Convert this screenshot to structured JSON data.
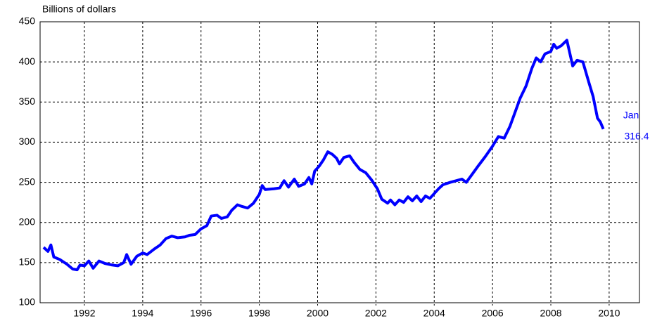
{
  "chart_data": {
    "type": "line",
    "y_label": "Billions of dollars",
    "annotations": [
      "Jan",
      "316.4"
    ],
    "x": [
      1990.6,
      1990.75,
      1990.85,
      1990.95,
      1991.15,
      1991.4,
      1991.6,
      1991.75,
      1991.85,
      1992.0,
      1992.15,
      1992.3,
      1992.5,
      1992.7,
      1992.95,
      1993.15,
      1993.35,
      1993.45,
      1993.6,
      1993.8,
      1994.0,
      1994.15,
      1994.4,
      1994.6,
      1994.8,
      1995.0,
      1995.2,
      1995.45,
      1995.6,
      1995.8,
      1996.0,
      1996.2,
      1996.35,
      1996.55,
      1996.7,
      1996.9,
      1997.05,
      1997.25,
      1997.4,
      1997.6,
      1997.8,
      1998.0,
      1998.1,
      1998.2,
      1998.5,
      1998.7,
      1998.85,
      1999.0,
      1999.2,
      1999.35,
      1999.55,
      1999.7,
      1999.8,
      1999.9,
      2000.05,
      2000.2,
      2000.35,
      2000.5,
      2000.65,
      2000.75,
      2000.9,
      2001.1,
      2001.25,
      2001.45,
      2001.65,
      2001.85,
      2002.05,
      2002.2,
      2002.4,
      2002.5,
      2002.65,
      2002.8,
      2002.95,
      2003.1,
      2003.25,
      2003.4,
      2003.55,
      2003.7,
      2003.85,
      2004.0,
      2004.15,
      2004.3,
      2004.55,
      2004.75,
      2004.95,
      2005.1,
      2005.3,
      2005.5,
      2005.75,
      2006.0,
      2006.2,
      2006.4,
      2006.6,
      2006.75,
      2006.95,
      2007.15,
      2007.35,
      2007.5,
      2007.65,
      2007.8,
      2008.0,
      2008.1,
      2008.2,
      2008.35,
      2008.55,
      2008.75,
      2008.9,
      2009.1,
      2009.3,
      2009.45,
      2009.6,
      2009.7,
      2009.8
    ],
    "series": [
      {
        "color": "#0000ff",
        "values": [
          169,
          164,
          172,
          157,
          154,
          148,
          142,
          141,
          147,
          146,
          152,
          143,
          152,
          149,
          147,
          146,
          150,
          160,
          148,
          158,
          162,
          160,
          167,
          172,
          180,
          183,
          181,
          182,
          184,
          185,
          192,
          196,
          208,
          209,
          205,
          207,
          215,
          222,
          220,
          218,
          224,
          235,
          246,
          241,
          242,
          243,
          252,
          244,
          254,
          245,
          248,
          256,
          248,
          264,
          270,
          278,
          288,
          285,
          280,
          273,
          281,
          283,
          275,
          266,
          262,
          253,
          242,
          229,
          224,
          228,
          222,
          228,
          225,
          232,
          227,
          233,
          226,
          233,
          230,
          236,
          242,
          247,
          250,
          252,
          254,
          250,
          260,
          270,
          282,
          295,
          307,
          305,
          320,
          335,
          355,
          370,
          392,
          405,
          400,
          410,
          413,
          422,
          417,
          420,
          427,
          395,
          402,
          400,
          375,
          357,
          330,
          325,
          316.4
        ]
      }
    ],
    "xlim": [
      1990.48,
      2011.04
    ],
    "xticks": [
      1992,
      1994,
      1996,
      1998,
      2000,
      2002,
      2004,
      2006,
      2008,
      2010
    ],
    "ylim": [
      100,
      450
    ],
    "yticks": [
      100,
      150,
      200,
      250,
      300,
      350,
      400,
      450
    ],
    "grid": true
  }
}
